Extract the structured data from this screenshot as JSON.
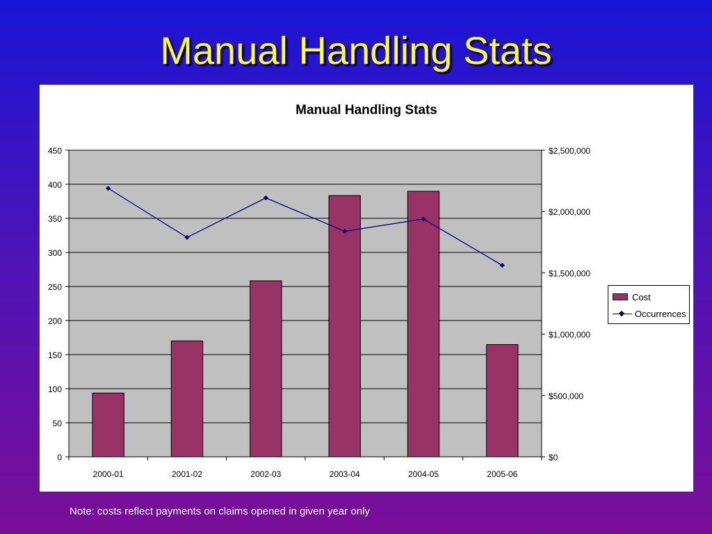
{
  "slide": {
    "title": "Manual Handling Stats",
    "note": "Note: costs reflect payments on claims opened in given year only"
  },
  "colors": {
    "bar": "#993366",
    "line": "#000080",
    "plot_bg": "#c0c0c0"
  },
  "chart_data": {
    "type": "bar",
    "title": "Manual Handling Stats",
    "categories": [
      "2000-01",
      "2001-02",
      "2002-03",
      "2003-04",
      "2004-05",
      "2005-06"
    ],
    "series": [
      {
        "name": "Cost",
        "type": "bar",
        "axis": "right",
        "values": [
          520000,
          945000,
          1435000,
          2130000,
          2165000,
          915000
        ]
      },
      {
        "name": "Occurrences",
        "type": "line",
        "axis": "left",
        "values": [
          394,
          322,
          380,
          331,
          349,
          281
        ]
      }
    ],
    "y_left": {
      "min": 0,
      "max": 450,
      "ticks": [
        "0",
        "50",
        "100",
        "150",
        "200",
        "250",
        "300",
        "350",
        "400",
        "450"
      ]
    },
    "y_right": {
      "min": 0,
      "max": 2500000,
      "ticks": [
        "$0",
        "$500,000",
        "$1,000,000",
        "$1,500,000",
        "$2,000,000",
        "$2,500,000"
      ]
    },
    "grid": true,
    "legend": "right"
  }
}
